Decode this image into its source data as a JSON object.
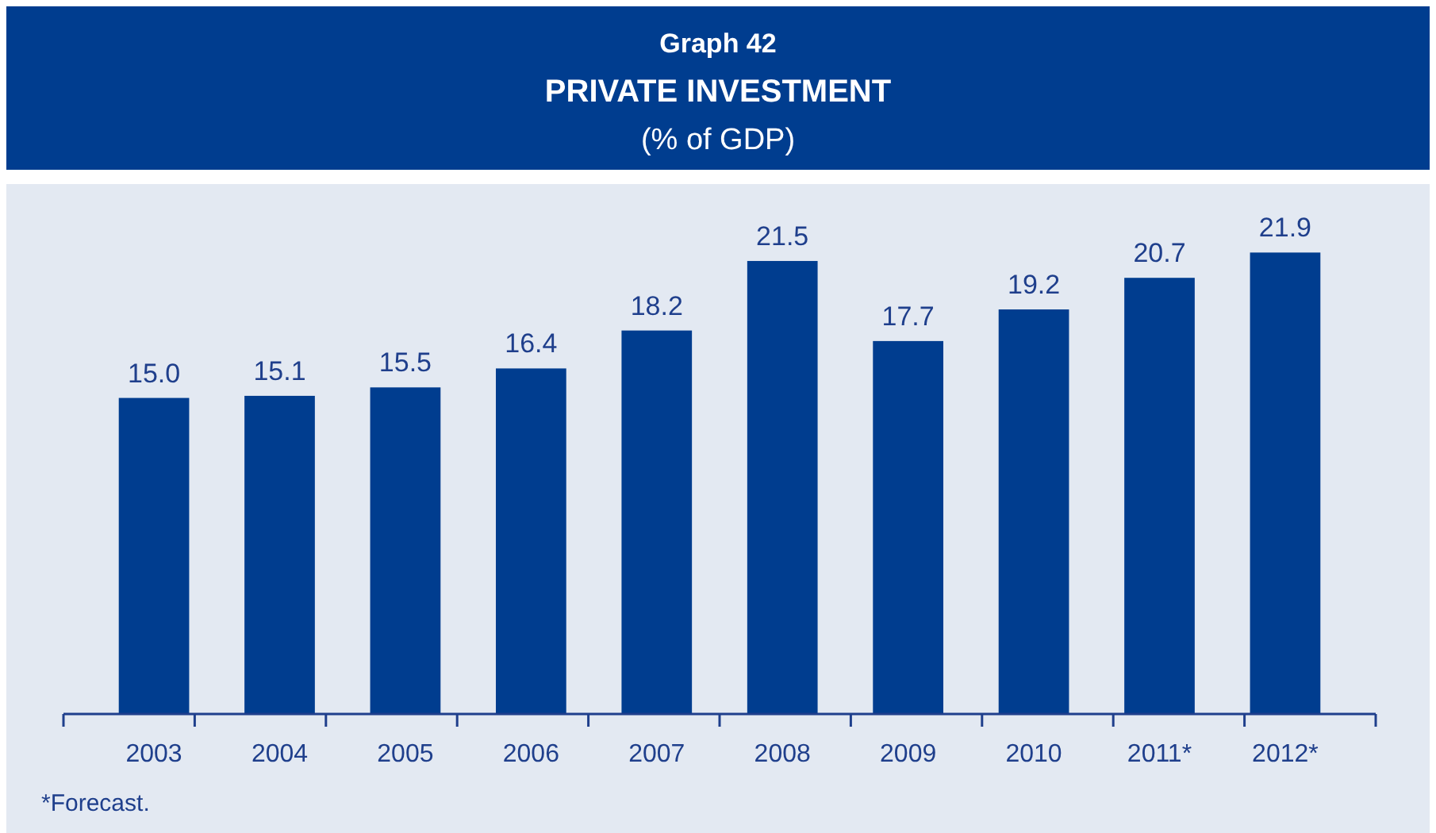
{
  "chart_data": {
    "type": "bar",
    "title": "Graph 42",
    "subtitle": "PRIVATE INVESTMENT",
    "ylabel": "(% of GDP)",
    "categories": [
      "2003",
      "2004",
      "2005",
      "2006",
      "2007",
      "2008",
      "2009",
      "2010",
      "2011*",
      "2012*"
    ],
    "values": [
      15.0,
      15.1,
      15.5,
      16.4,
      18.2,
      21.5,
      17.7,
      19.2,
      20.7,
      21.9
    ],
    "value_labels": [
      "15.0",
      "15.1",
      "15.5",
      "16.4",
      "18.2",
      "21.5",
      "17.7",
      "19.2",
      "20.7",
      "21.9"
    ],
    "color": "#003d8f",
    "ylim": [
      0,
      25
    ],
    "tick_labels": "x",
    "annotations": [
      "*Forecast."
    ]
  }
}
